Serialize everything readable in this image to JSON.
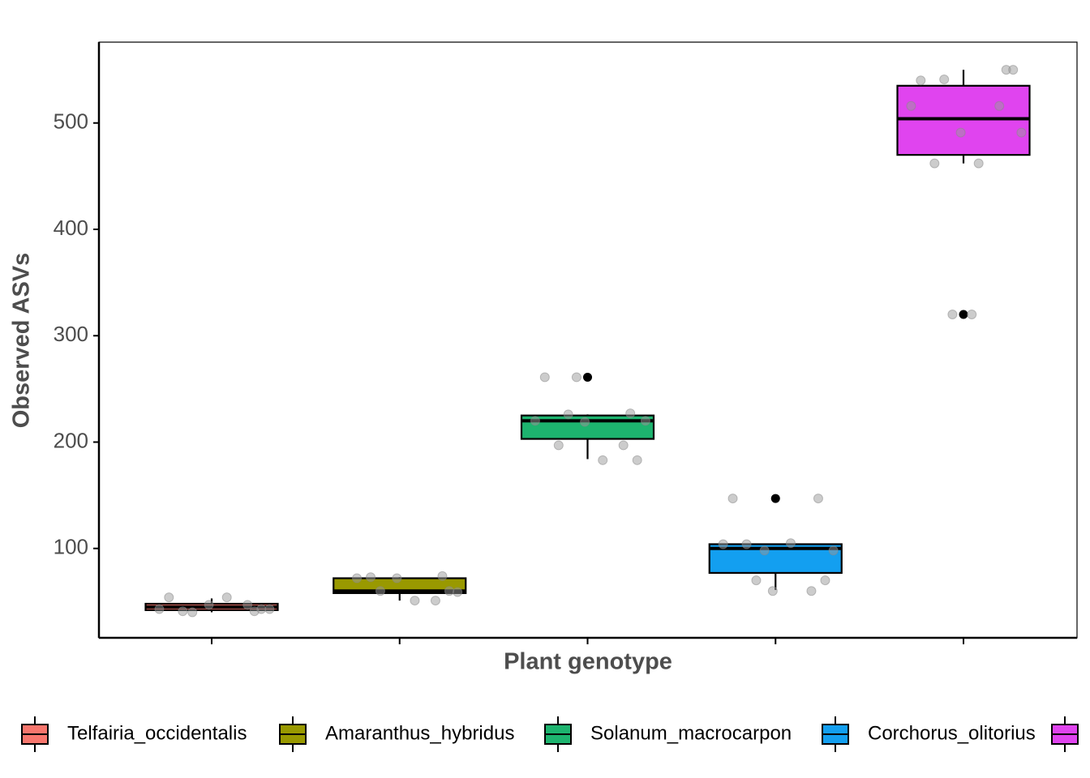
{
  "chart_data": {
    "type": "box",
    "x_label": "Plant genotype",
    "y_label": "Observed ASVs",
    "ylim": [
      16,
      576
    ],
    "yticks": [
      100,
      200,
      300,
      400,
      500
    ],
    "series": [
      {
        "name": "Telfairia_occidentalis",
        "color": "#f8766d",
        "box": {
          "low": 40,
          "q1": 42,
          "median": 45,
          "q3": 48,
          "high": 53
        },
        "outliers": [],
        "points": [
          54,
          41,
          40,
          47,
          47,
          43,
          41,
          54,
          43,
          43
        ]
      },
      {
        "name": "Amaranthus_hybridus",
        "color": "#999900",
        "box": {
          "low": 51,
          "q1": 58,
          "median": 60,
          "q3": 72,
          "high": 73
        },
        "outliers": [],
        "points": [
          72,
          74,
          60,
          51,
          72,
          59,
          73,
          51,
          60
        ]
      },
      {
        "name": "Solanum_macrocarpon",
        "color": "#1db46f",
        "box": {
          "low": 184,
          "q1": 203,
          "median": 220,
          "q3": 225,
          "high": 226
        },
        "outliers": [
          261
        ],
        "points": [
          261,
          227,
          226,
          197,
          219,
          220,
          197,
          183,
          183,
          220,
          261
        ]
      },
      {
        "name": "Corchorus_olitorius",
        "color": "#139ff0",
        "box": {
          "low": 61,
          "q1": 77,
          "median": 100,
          "q3": 104,
          "high": 104
        },
        "outliers": [
          147
        ],
        "points": [
          147,
          147,
          70,
          60,
          60,
          98,
          104,
          105,
          70,
          104,
          98
        ]
      },
      {
        "color": "#e044ef",
        "box": {
          "low": 462,
          "q1": 470,
          "median": 504,
          "q3": 535,
          "high": 550
        },
        "outliers": [
          320
        ],
        "points": [
          540,
          550,
          541,
          516,
          491,
          491,
          462,
          462,
          550,
          516,
          320,
          320
        ]
      }
    ]
  }
}
